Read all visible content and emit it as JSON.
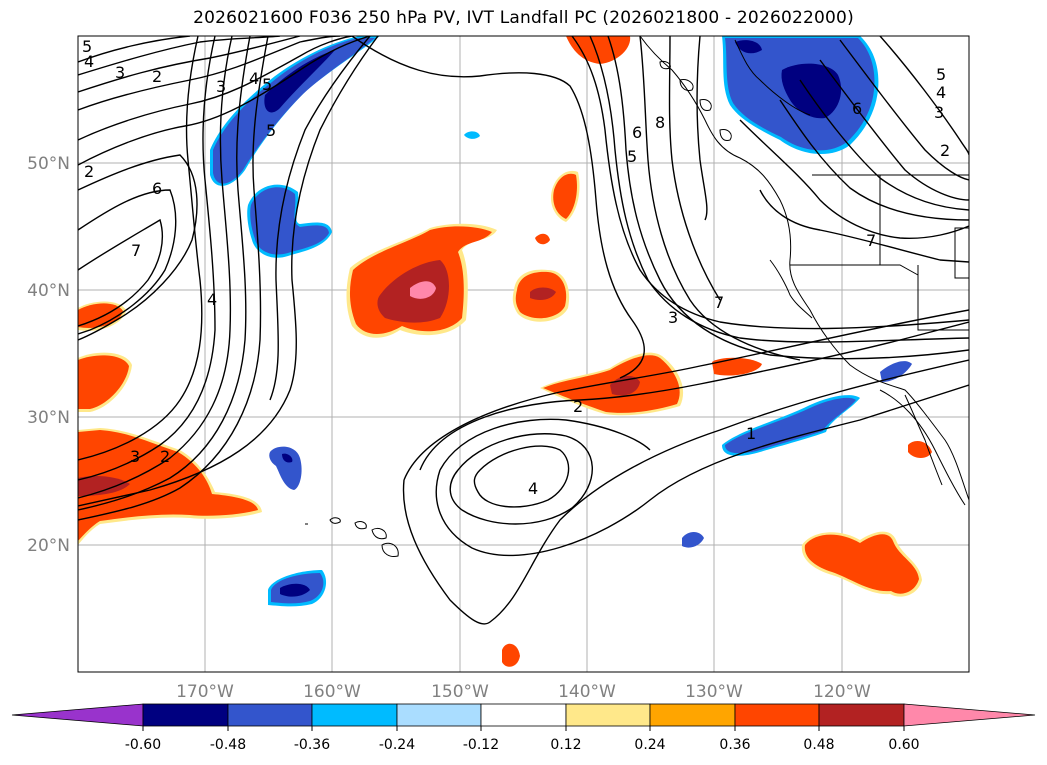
{
  "title": "2026021600 F036 250 hPa PV, IVT Landfall PC (2026021800 - 2026022000)",
  "map": {
    "lon_labels": [
      "170°W",
      "160°W",
      "150°W",
      "140°W",
      "130°W",
      "120°W"
    ],
    "lat_labels": [
      "50°N",
      "40°N",
      "30°N",
      "20°N"
    ],
    "label_color": "#808080",
    "grid_color": "#b0b0b0"
  },
  "colorbar": {
    "ticks": [
      "-0.60",
      "-0.48",
      "-0.36",
      "-0.24",
      "-0.12",
      "0.12",
      "0.24",
      "0.36",
      "0.48",
      "0.60"
    ],
    "colors": [
      "#9933cc",
      "#000080",
      "#3355cc",
      "#00bbff",
      "#aaddff",
      "#ffffff",
      "#ffe88a",
      "#ffa500",
      "#ff4500",
      "#b22222",
      "#ff88aa"
    ]
  },
  "contour_labels": [
    "5",
    "4",
    "3",
    "2",
    "3",
    "4",
    "5",
    "5",
    "6",
    "7",
    "4",
    "2",
    "3",
    "2",
    "4",
    "6",
    "5",
    "8",
    "7",
    "3",
    "2",
    "1",
    "5",
    "4",
    "3",
    "2",
    "6",
    "7"
  ],
  "shade_colors": {
    "pos_outer": "#ffe88a",
    "pos_mid": "#ff4500",
    "pos_high": "#b22222",
    "pos_peak": "#ff88aa",
    "neg_outer": "#00bbff",
    "neg_mid": "#3355cc",
    "neg_high": "#000080"
  }
}
